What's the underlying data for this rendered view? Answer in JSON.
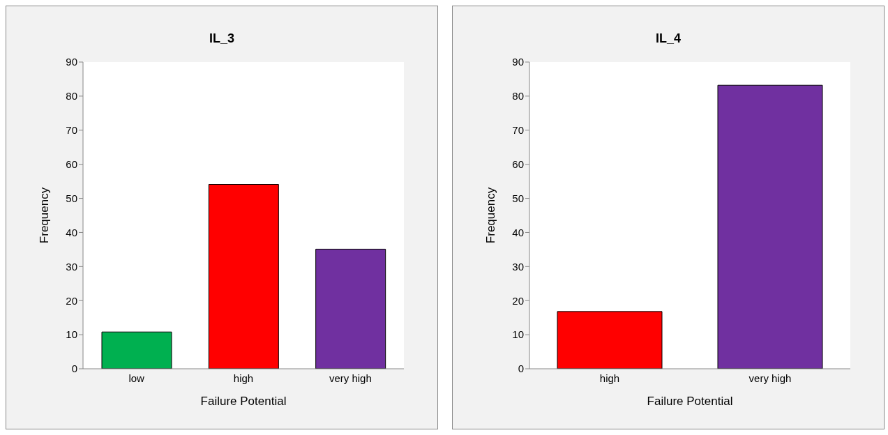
{
  "chart_data": [
    {
      "type": "bar",
      "title": "IL_3",
      "xlabel": "Failure Potential",
      "ylabel": "Frequency",
      "categories": [
        "low",
        "high",
        "very high"
      ],
      "values": [
        10.8,
        54.1,
        35.1
      ],
      "colors": [
        "#00b050",
        "#ff0000",
        "#7030a0"
      ],
      "ylim": [
        0,
        90
      ],
      "yticks": [
        0,
        10,
        20,
        30,
        40,
        50,
        60,
        70,
        80,
        90
      ]
    },
    {
      "type": "bar",
      "title": "IL_4",
      "xlabel": "Failure Potential",
      "ylabel": "Frequency",
      "categories": [
        "high",
        "very high"
      ],
      "values": [
        16.8,
        83.2
      ],
      "colors": [
        "#ff0000",
        "#7030a0"
      ],
      "ylim": [
        0,
        90
      ],
      "yticks": [
        0,
        10,
        20,
        30,
        40,
        50,
        60,
        70,
        80,
        90
      ]
    }
  ]
}
